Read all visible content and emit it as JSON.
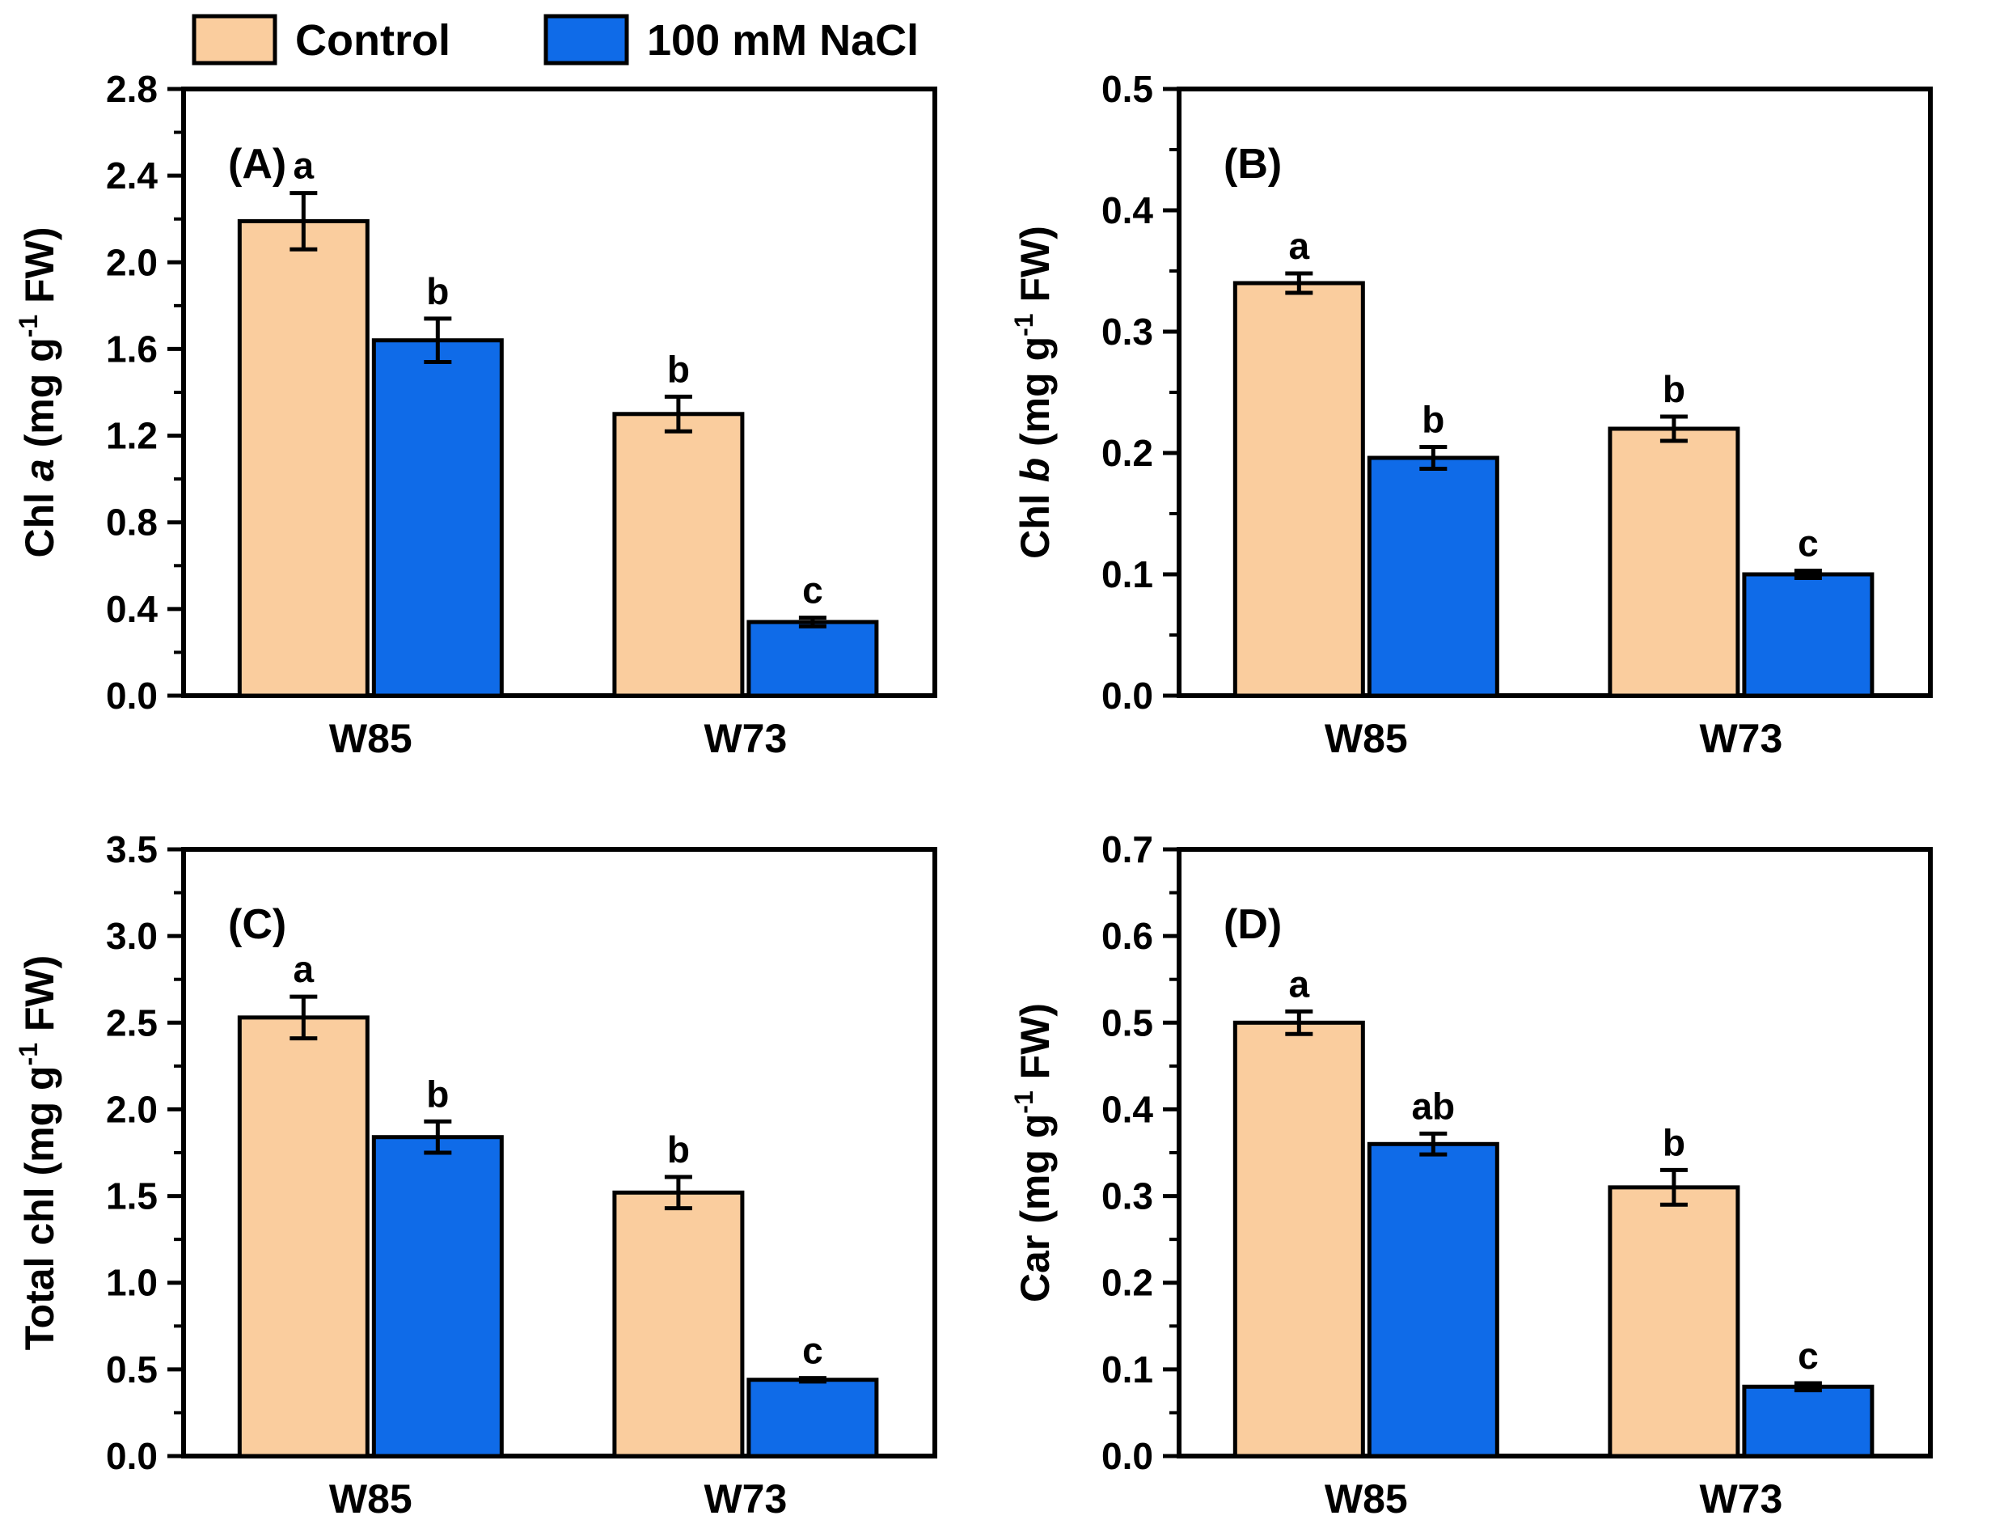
{
  "figure": {
    "description": "Four-panel bar chart of leaf pigment contents in two cultivars (W85, W73) under Control and 100 mM NaCl",
    "background": "#ffffff"
  },
  "legend": {
    "items": [
      {
        "label": "Control",
        "color": "#FACD9E"
      },
      {
        "label": "100 mM NaCl",
        "color": "#0F6BE8"
      }
    ]
  },
  "colors": {
    "control_fill": "#FACD9E",
    "nacl_fill": "#0F6BE8",
    "outline": "#000000"
  },
  "categories": [
    "W85",
    "W73"
  ],
  "chart_data": [
    {
      "type": "bar",
      "panel_label": "(A)",
      "ylabel_text": "Chl a (mg g-1 FW)",
      "ylabel_segments": [
        {
          "t": "Chl ",
          "style": "normal"
        },
        {
          "t": "a",
          "style": "italic"
        },
        {
          "t": " (mg g",
          "style": "normal"
        },
        {
          "t": "-1",
          "style": "sup"
        },
        {
          "t": " FW)",
          "style": "normal"
        }
      ],
      "ylim": [
        0,
        2.8
      ],
      "ytick_major": 0.4,
      "ytick_minor": 0.2,
      "categories": [
        "W85",
        "W73"
      ],
      "series": [
        {
          "name": "Control",
          "values": [
            2.19,
            1.3
          ],
          "errors": [
            0.13,
            0.08
          ],
          "letters": [
            "a",
            "b"
          ]
        },
        {
          "name": "100 mM NaCl",
          "values": [
            1.64,
            0.34
          ],
          "errors": [
            0.1,
            0.02
          ],
          "letters": [
            "b",
            "c"
          ]
        }
      ]
    },
    {
      "type": "bar",
      "panel_label": "(B)",
      "ylabel_text": "Chl b (mg g-1 FW)",
      "ylabel_segments": [
        {
          "t": "Chl ",
          "style": "normal"
        },
        {
          "t": "b",
          "style": "italic"
        },
        {
          "t": " (mg g",
          "style": "normal"
        },
        {
          "t": "-1",
          "style": "sup"
        },
        {
          "t": " FW)",
          "style": "normal"
        }
      ],
      "ylim": [
        0,
        0.5
      ],
      "ytick_major": 0.1,
      "ytick_minor": 0.05,
      "categories": [
        "W85",
        "W73"
      ],
      "series": [
        {
          "name": "Control",
          "values": [
            0.34,
            0.22
          ],
          "errors": [
            0.008,
            0.01
          ],
          "letters": [
            "a",
            "b"
          ]
        },
        {
          "name": "100 mM NaCl",
          "values": [
            0.196,
            0.1
          ],
          "errors": [
            0.009,
            0.003
          ],
          "letters": [
            "b",
            "c"
          ]
        }
      ]
    },
    {
      "type": "bar",
      "panel_label": "(C)",
      "ylabel_text": "Total chl (mg g-1 FW)",
      "ylabel_segments": [
        {
          "t": "Total chl (mg g",
          "style": "normal"
        },
        {
          "t": "-1",
          "style": "sup"
        },
        {
          "t": " FW)",
          "style": "normal"
        }
      ],
      "ylim": [
        0,
        3.5
      ],
      "ytick_major": 0.5,
      "ytick_minor": 0.25,
      "categories": [
        "W85",
        "W73"
      ],
      "series": [
        {
          "name": "Control",
          "values": [
            2.53,
            1.52
          ],
          "errors": [
            0.12,
            0.09
          ],
          "letters": [
            "a",
            "b"
          ]
        },
        {
          "name": "100 mM NaCl",
          "values": [
            1.84,
            0.44
          ],
          "errors": [
            0.09,
            0.01
          ],
          "letters": [
            "b",
            "c"
          ]
        }
      ]
    },
    {
      "type": "bar",
      "panel_label": "(D)",
      "ylabel_text": "Car (mg g-1 FW)",
      "ylabel_segments": [
        {
          "t": "Car (mg g",
          "style": "normal"
        },
        {
          "t": "-1",
          "style": "sup"
        },
        {
          "t": " FW)",
          "style": "normal"
        }
      ],
      "ylim": [
        0,
        0.7
      ],
      "ytick_major": 0.1,
      "ytick_minor": 0.05,
      "categories": [
        "W85",
        "W73"
      ],
      "series": [
        {
          "name": "Control",
          "values": [
            0.5,
            0.31
          ],
          "errors": [
            0.013,
            0.02
          ],
          "letters": [
            "a",
            "b"
          ]
        },
        {
          "name": "100 mM NaCl",
          "values": [
            0.36,
            0.08
          ],
          "errors": [
            0.012,
            0.004
          ],
          "letters": [
            "ab",
            "c"
          ]
        }
      ]
    }
  ]
}
